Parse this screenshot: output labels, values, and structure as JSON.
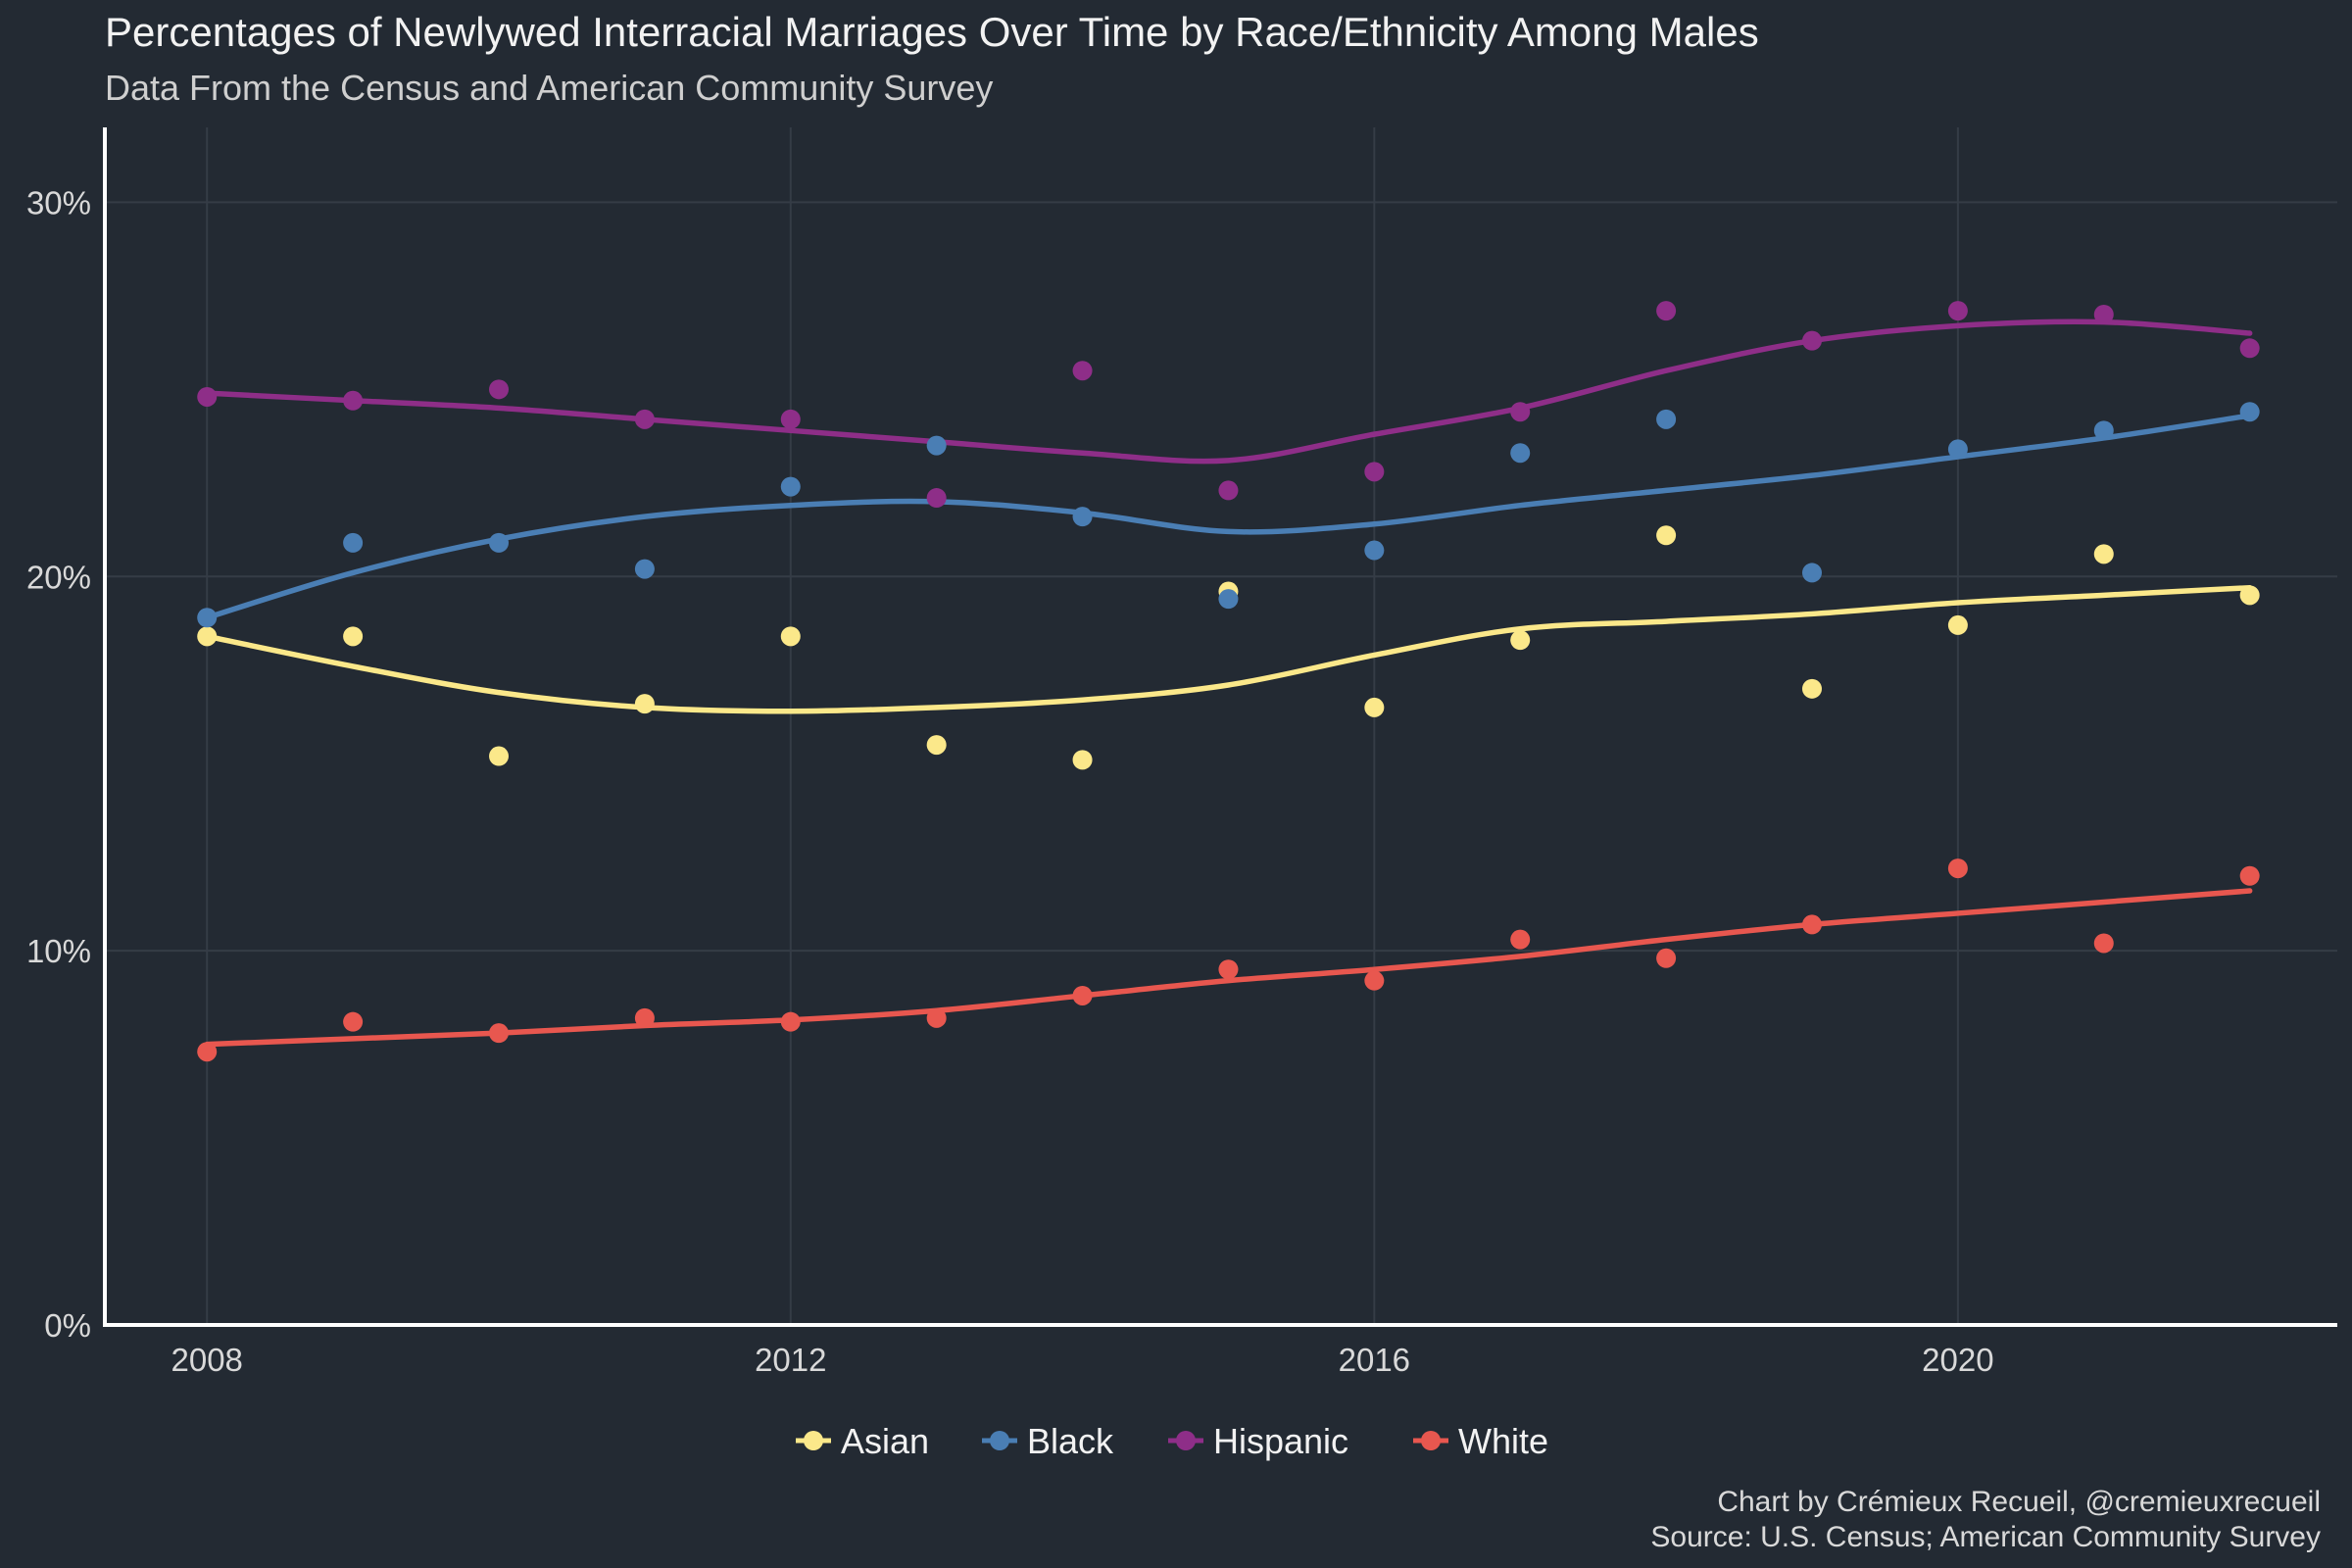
{
  "chart_data": {
    "type": "scatter",
    "title": "Percentages of Newlywed Interracial Marriages Over Time by Race/Ethnicity Among Males",
    "subtitle": "Data From the Census and American Community Survey",
    "xlabel": "",
    "ylabel": "",
    "xlim": [
      2007.3,
      2022.6
    ],
    "ylim": [
      0,
      32
    ],
    "x_ticks": [
      2008,
      2012,
      2016,
      2020
    ],
    "x_tick_labels": [
      "2008",
      "2012",
      "2016",
      "2020"
    ],
    "y_ticks": [
      0,
      10,
      20,
      30
    ],
    "y_tick_labels": [
      "0%",
      "10%",
      "20%",
      "30%"
    ],
    "grid": true,
    "legend_position": "bottom",
    "x": [
      2008,
      2009,
      2010,
      2011,
      2012,
      2013,
      2014,
      2015,
      2016,
      2017,
      2018,
      2019,
      2020,
      2021,
      2022
    ],
    "series": [
      {
        "name": "Asian",
        "color": "#fbe88a",
        "points": [
          18.4,
          18.4,
          15.2,
          16.6,
          18.4,
          15.5,
          15.1,
          19.6,
          16.5,
          18.3,
          21.1,
          17.0,
          18.7,
          20.6,
          19.5
        ],
        "trend": [
          18.4,
          17.6,
          16.9,
          16.5,
          16.4,
          16.5,
          16.7,
          17.1,
          17.9,
          18.6,
          18.8,
          19.0,
          19.3,
          19.5,
          19.7
        ]
      },
      {
        "name": "Black",
        "color": "#4a7eb4",
        "points": [
          18.9,
          20.9,
          20.9,
          20.2,
          22.4,
          23.5,
          21.6,
          19.4,
          20.7,
          23.3,
          24.2,
          20.1,
          23.4,
          23.9,
          24.4
        ],
        "trend": [
          18.9,
          20.1,
          21.0,
          21.6,
          21.9,
          22.0,
          21.7,
          21.2,
          21.4,
          21.9,
          22.3,
          22.7,
          23.2,
          23.7,
          24.3
        ]
      },
      {
        "name": "Hispanic",
        "color": "#8e2e88",
        "points": [
          24.8,
          24.7,
          25.0,
          24.2,
          24.2,
          22.1,
          25.5,
          22.3,
          22.8,
          24.4,
          27.1,
          26.3,
          27.1,
          27.0,
          26.1
        ],
        "trend": [
          24.9,
          24.7,
          24.5,
          24.2,
          23.9,
          23.6,
          23.3,
          23.1,
          23.8,
          24.5,
          25.5,
          26.3,
          26.7,
          26.8,
          26.5
        ]
      },
      {
        "name": "White",
        "color": "#e8574f",
        "points": [
          7.3,
          8.1,
          7.8,
          8.2,
          8.1,
          8.2,
          8.8,
          9.5,
          9.2,
          10.3,
          9.8,
          10.7,
          12.2,
          10.2,
          12.0
        ],
        "trend": [
          7.5,
          7.65,
          7.8,
          8.0,
          8.15,
          8.4,
          8.8,
          9.2,
          9.5,
          9.85,
          10.3,
          10.7,
          11.0,
          11.3,
          11.6
        ]
      }
    ]
  },
  "caption": {
    "line1": "Chart by Crémieux Recueil, @cremieuxrecueil",
    "line2": "Source: U.S. Census; American Community Survey"
  },
  "colors": {
    "background": "#232a33",
    "grid": "#353c46",
    "axis": "#ffffff"
  }
}
